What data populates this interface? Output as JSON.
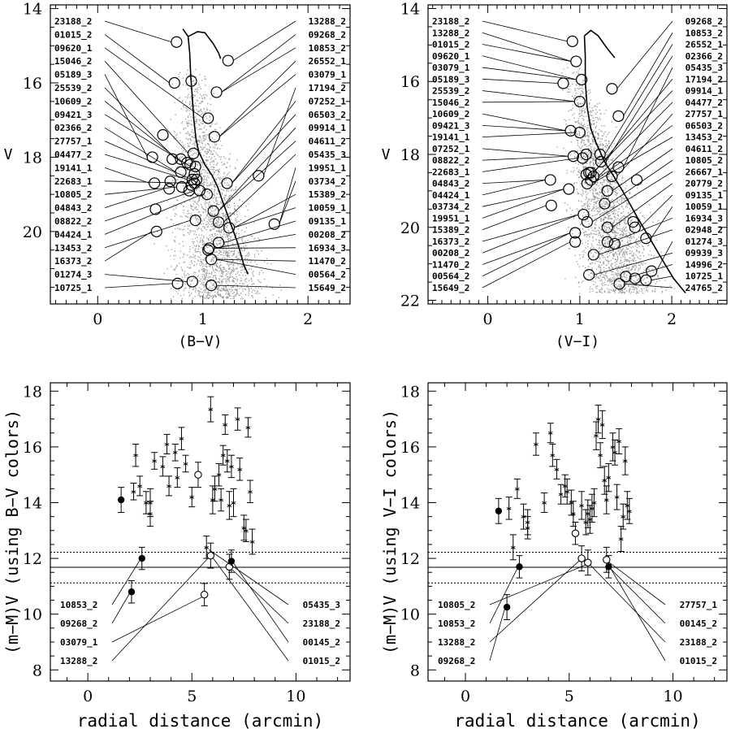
{
  "chart_data": [
    {
      "type": "scatter",
      "panel": "top-left",
      "xlabel": "(B−V)",
      "ylabel": "V",
      "xlim": [
        -0.45,
        2.4
      ],
      "ylim": [
        21.95,
        13.9
      ],
      "xticks": [
        "0",
        "1",
        "2"
      ],
      "yticks": [
        "14",
        "16",
        "18",
        "20"
      ],
      "left_labels": [
        "23188_2",
        "01015_2",
        "09620_1",
        "15046_2",
        "05189_3",
        "25539_2",
        "10609_2",
        "09421_3",
        "02366_2",
        "27757_1",
        "04477_2",
        "19141_1",
        "22683_1",
        "10805_2",
        "04843_2",
        "08822_2",
        "04424_1",
        "13453_2",
        "16373_2",
        "01274_3",
        "10725_1"
      ],
      "right_labels": [
        "13288_2",
        "09268_2",
        "10853_2",
        "26552_1",
        "03079_1",
        "17194_2",
        "07252_1",
        "06503_2",
        "09914_1",
        "04611_2",
        "05435_3",
        "19951_1",
        "03734_2",
        "15389_2",
        "10059_1",
        "09135_1",
        "00208_2",
        "16934_3",
        "11470_2",
        "00564_2",
        "15649_2"
      ],
      "circles": [
        [
          0.75,
          14.9
        ],
        [
          0.73,
          16.0
        ],
        [
          0.89,
          15.95
        ],
        [
          0.52,
          18.0
        ],
        [
          0.62,
          17.4
        ],
        [
          0.54,
          18.7
        ],
        [
          0.71,
          18.05
        ],
        [
          0.79,
          18.05
        ],
        [
          0.79,
          18.4
        ],
        [
          0.85,
          18.15
        ],
        [
          0.88,
          18.2
        ],
        [
          0.91,
          17.9
        ],
        [
          0.92,
          18.45
        ],
        [
          0.93,
          18.25
        ],
        [
          0.94,
          18.6
        ],
        [
          0.89,
          18.75
        ],
        [
          0.92,
          18.7
        ],
        [
          0.87,
          18.9
        ],
        [
          0.9,
          18.6
        ],
        [
          0.69,
          18.65
        ],
        [
          0.68,
          18.85
        ],
        [
          0.8,
          18.8
        ],
        [
          0.97,
          18.9
        ],
        [
          1.04,
          19.0
        ],
        [
          1.1,
          19.45
        ],
        [
          1.15,
          19.75
        ],
        [
          0.93,
          19.7
        ],
        [
          0.55,
          19.4
        ],
        [
          0.56,
          20.0
        ],
        [
          1.05,
          20.5
        ],
        [
          1.06,
          20.45
        ],
        [
          1.08,
          20.75
        ],
        [
          1.15,
          20.3
        ],
        [
          1.25,
          19.9
        ],
        [
          1.11,
          17.45
        ],
        [
          1.13,
          16.25
        ],
        [
          1.05,
          16.95
        ],
        [
          1.24,
          15.4
        ],
        [
          1.23,
          18.7
        ],
        [
          1.53,
          18.5
        ],
        [
          1.68,
          19.8
        ],
        [
          0.76,
          21.4
        ],
        [
          0.9,
          21.35
        ],
        [
          1.08,
          21.45
        ]
      ],
      "fiducial": [
        [
          0.81,
          14.55
        ],
        [
          0.86,
          14.75
        ],
        [
          0.875,
          15.2
        ],
        [
          0.885,
          15.8
        ],
        [
          0.9,
          16.4
        ],
        [
          0.915,
          17.0
        ],
        [
          0.935,
          17.5
        ],
        [
          0.96,
          17.85
        ],
        [
          1.02,
          18.2
        ],
        [
          1.09,
          18.5
        ],
        [
          1.14,
          18.8
        ],
        [
          1.19,
          19.2
        ],
        [
          1.26,
          19.75
        ],
        [
          1.33,
          20.3
        ],
        [
          1.39,
          20.9
        ],
        [
          1.43,
          21.15
        ]
      ],
      "fiducial_branch": [
        [
          0.86,
          14.75
        ],
        [
          0.95,
          14.62
        ],
        [
          1.02,
          14.65
        ],
        [
          1.1,
          14.95
        ],
        [
          1.15,
          15.2
        ],
        [
          1.17,
          15.35
        ]
      ]
    },
    {
      "type": "scatter",
      "panel": "top-right",
      "xlabel": "(V−I)",
      "ylabel": "V",
      "xlim": [
        -0.65,
        2.6
      ],
      "ylim": [
        22.1,
        13.9
      ],
      "xticks": [
        "0",
        "1",
        "2"
      ],
      "yticks": [
        "14",
        "16",
        "18",
        "20",
        "22"
      ],
      "left_labels": [
        "23188_2",
        "13288_2",
        "01015_2",
        "09620_1",
        "03079_1",
        "05189_3",
        "25539_2",
        "15046_2",
        "10609_2",
        "09421_3",
        "19141_1",
        "07252_1",
        "08822_2",
        "22683_1",
        "04843_2",
        "04424_1",
        "03734_2",
        "19951_1",
        "15389_2",
        "16373_2",
        "00208_2",
        "11470_2",
        "00564_2",
        "15649_2"
      ],
      "right_labels": [
        "09268_2",
        "10853_2",
        "26552_1",
        "02366_2",
        "05435_3",
        "17194_2",
        "09914_1",
        "04477_2",
        "27757_1",
        "06503_2",
        "13453_2",
        "04611_2",
        "10805_2",
        "26667_1",
        "20779_2",
        "09135_1",
        "10059_1",
        "16934_3",
        "02948_2",
        "01274_3",
        "09939_3",
        "14996_2",
        "10725_1",
        "24765_2"
      ],
      "circles": [
        [
          0.92,
          14.9
        ],
        [
          0.96,
          15.45
        ],
        [
          1.02,
          15.95
        ],
        [
          0.82,
          16.05
        ],
        [
          1.0,
          16.55
        ],
        [
          0.9,
          17.35
        ],
        [
          1.0,
          17.4
        ],
        [
          0.93,
          18.05
        ],
        [
          1.03,
          18.1
        ],
        [
          1.07,
          18.0
        ],
        [
          1.22,
          18.0
        ],
        [
          1.23,
          18.2
        ],
        [
          1.07,
          18.55
        ],
        [
          1.1,
          18.5
        ],
        [
          1.12,
          18.5
        ],
        [
          1.15,
          18.6
        ],
        [
          1.12,
          18.7
        ],
        [
          1.08,
          18.8
        ],
        [
          1.35,
          18.6
        ],
        [
          1.42,
          18.35
        ],
        [
          1.62,
          18.7
        ],
        [
          1.3,
          19.0
        ],
        [
          1.27,
          19.35
        ],
        [
          0.68,
          18.7
        ],
        [
          0.88,
          18.95
        ],
        [
          0.69,
          19.4
        ],
        [
          1.04,
          19.65
        ],
        [
          1.08,
          19.85
        ],
        [
          0.95,
          20.15
        ],
        [
          0.95,
          20.4
        ],
        [
          1.3,
          20.0
        ],
        [
          1.38,
          20.45
        ],
        [
          1.58,
          19.85
        ],
        [
          1.6,
          20.0
        ],
        [
          1.72,
          20.3
        ],
        [
          1.3,
          20.4
        ],
        [
          1.15,
          20.75
        ],
        [
          1.35,
          16.2
        ],
        [
          1.42,
          16.95
        ],
        [
          1.1,
          21.3
        ],
        [
          1.5,
          21.35
        ],
        [
          1.6,
          21.4
        ],
        [
          1.78,
          21.2
        ],
        [
          1.72,
          21.45
        ],
        [
          1.43,
          21.55
        ]
      ],
      "fiducial": [
        [
          1.05,
          14.75
        ],
        [
          1.06,
          15.3
        ],
        [
          1.06,
          16.0
        ],
        [
          1.08,
          16.7
        ],
        [
          1.12,
          17.3
        ],
        [
          1.18,
          17.7
        ],
        [
          1.27,
          18.2
        ],
        [
          1.37,
          18.6
        ],
        [
          1.5,
          19.15
        ],
        [
          1.62,
          19.7
        ],
        [
          1.76,
          20.3
        ],
        [
          1.9,
          20.9
        ],
        [
          2.02,
          21.4
        ],
        [
          2.15,
          21.8
        ]
      ],
      "fiducial_branch": [
        [
          1.05,
          14.75
        ],
        [
          1.12,
          14.6
        ],
        [
          1.2,
          14.75
        ],
        [
          1.3,
          15.1
        ],
        [
          1.38,
          15.35
        ]
      ]
    },
    {
      "type": "scatter",
      "panel": "bottom-left",
      "xlabel": "radial distance (arcmin)",
      "ylabel": "(m−M)V (using B−V colors)",
      "xlim": [
        -1.8,
        12.6
      ],
      "ylim": [
        7.6,
        18.3
      ],
      "xticks": [
        "0",
        "5",
        "10"
      ],
      "yticks": [
        "8",
        "10",
        "12",
        "14",
        "16",
        "18"
      ],
      "hlines": {
        "solid": 11.68,
        "dashed": [
          11.12,
          12.22
        ]
      },
      "stars": [
        [
          2.2,
          14.4,
          0.3
        ],
        [
          2.3,
          15.7,
          0.4
        ],
        [
          2.5,
          14.6,
          0.35
        ],
        [
          2.8,
          14.0,
          0.4
        ],
        [
          3.0,
          13.6,
          0.45
        ],
        [
          3.0,
          14.0,
          0.5
        ],
        [
          3.2,
          15.5,
          0.3
        ],
        [
          3.6,
          15.3,
          0.35
        ],
        [
          3.8,
          16.1,
          0.35
        ],
        [
          3.9,
          14.6,
          0.35
        ],
        [
          4.2,
          15.8,
          0.3
        ],
        [
          4.3,
          14.9,
          0.35
        ],
        [
          4.5,
          16.3,
          0.4
        ],
        [
          4.7,
          15.4,
          0.3
        ],
        [
          5.0,
          14.2,
          0.35
        ],
        [
          5.7,
          12.4,
          0.4
        ],
        [
          5.9,
          17.35,
          0.45
        ],
        [
          6.0,
          14.1,
          0.5
        ],
        [
          6.1,
          14.5,
          0.45
        ],
        [
          6.3,
          15.0,
          0.4
        ],
        [
          6.4,
          14.1,
          0.4
        ],
        [
          6.5,
          15.7,
          0.35
        ],
        [
          6.6,
          16.8,
          0.35
        ],
        [
          6.7,
          15.5,
          0.4
        ],
        [
          6.8,
          13.9,
          0.5
        ],
        [
          6.9,
          15.3,
          0.4
        ],
        [
          7.0,
          14.0,
          0.5
        ],
        [
          7.2,
          17.0,
          0.4
        ],
        [
          7.3,
          15.2,
          0.4
        ],
        [
          7.5,
          13.1,
          0.45
        ],
        [
          7.6,
          13.0,
          0.4
        ],
        [
          7.7,
          16.7,
          0.35
        ],
        [
          7.8,
          14.4,
          0.4
        ],
        [
          7.9,
          12.6,
          0.45
        ]
      ],
      "filled": [
        [
          1.6,
          14.1,
          0.45
        ],
        [
          2.1,
          10.8,
          0.4
        ],
        [
          2.6,
          12.0,
          0.4
        ],
        [
          6.9,
          11.9,
          0.4
        ]
      ],
      "open": [
        [
          5.3,
          15.0,
          0.45
        ],
        [
          5.6,
          10.7,
          0.4
        ],
        [
          5.9,
          12.1,
          0.45
        ],
        [
          6.8,
          11.7,
          0.45
        ]
      ],
      "callouts_left": [
        "10853_2",
        "09268_2",
        "03079_1",
        "13288_2"
      ],
      "callouts_right": [
        "05435_3",
        "23188_2",
        "00145_2",
        "01015_2"
      ]
    },
    {
      "type": "scatter",
      "panel": "bottom-right",
      "xlabel": "radial distance (arcmin)",
      "ylabel": "(m−M)V (using V−I colors)",
      "xlim": [
        -1.8,
        12.6
      ],
      "ylim": [
        7.6,
        18.3
      ],
      "xticks": [
        "0",
        "5",
        "10"
      ],
      "yticks": [
        "8",
        "10",
        "12",
        "14",
        "16",
        "18"
      ],
      "hlines": {
        "solid": 11.68,
        "dashed": [
          11.12,
          12.22
        ]
      },
      "stars": [
        [
          2.1,
          13.8,
          0.4
        ],
        [
          2.3,
          12.4,
          0.45
        ],
        [
          2.5,
          14.5,
          0.35
        ],
        [
          2.8,
          13.5,
          0.45
        ],
        [
          3.0,
          13.1,
          0.4
        ],
        [
          3.0,
          13.3,
          0.45
        ],
        [
          3.4,
          16.1,
          0.4
        ],
        [
          3.8,
          14.0,
          0.35
        ],
        [
          4.1,
          16.5,
          0.35
        ],
        [
          4.2,
          15.7,
          0.4
        ],
        [
          4.4,
          15.2,
          0.35
        ],
        [
          4.6,
          14.3,
          0.35
        ],
        [
          4.8,
          14.6,
          0.4
        ],
        [
          4.9,
          14.4,
          0.45
        ],
        [
          5.1,
          14.0,
          0.45
        ],
        [
          5.2,
          13.6,
          0.45
        ],
        [
          5.6,
          13.9,
          0.5
        ],
        [
          5.8,
          13.3,
          0.45
        ],
        [
          5.9,
          13.6,
          0.5
        ],
        [
          6.0,
          13.4,
          0.5
        ],
        [
          6.1,
          13.8,
          0.5
        ],
        [
          6.2,
          14.0,
          0.5
        ],
        [
          6.3,
          16.4,
          0.5
        ],
        [
          6.4,
          17.0,
          0.5
        ],
        [
          6.5,
          15.7,
          0.45
        ],
        [
          6.6,
          16.8,
          0.5
        ],
        [
          6.7,
          14.8,
          0.5
        ],
        [
          6.8,
          14.1,
          0.5
        ],
        [
          6.9,
          14.9,
          0.5
        ],
        [
          7.1,
          16.0,
          0.5
        ],
        [
          7.2,
          15.8,
          0.45
        ],
        [
          7.3,
          14.2,
          0.45
        ],
        [
          7.4,
          16.2,
          0.45
        ],
        [
          7.5,
          12.7,
          0.45
        ],
        [
          7.6,
          13.5,
          0.45
        ],
        [
          7.7,
          15.5,
          0.5
        ],
        [
          7.8,
          13.9,
          0.5
        ],
        [
          7.9,
          13.7,
          0.45
        ]
      ],
      "filled": [
        [
          1.6,
          13.7,
          0.45
        ],
        [
          2.0,
          10.25,
          0.45
        ],
        [
          2.6,
          11.7,
          0.4
        ],
        [
          6.9,
          11.7,
          0.4
        ]
      ],
      "open": [
        [
          5.3,
          12.9,
          0.4
        ],
        [
          5.6,
          12.0,
          0.45
        ],
        [
          5.9,
          11.85,
          0.45
        ],
        [
          6.8,
          11.95,
          0.45
        ]
      ],
      "callouts_left": [
        "10805_2",
        "10853_2",
        "13288_2",
        "09268_2"
      ],
      "callouts_right": [
        "27757_1",
        "00145_2",
        "23188_2",
        "01015_2"
      ]
    }
  ]
}
